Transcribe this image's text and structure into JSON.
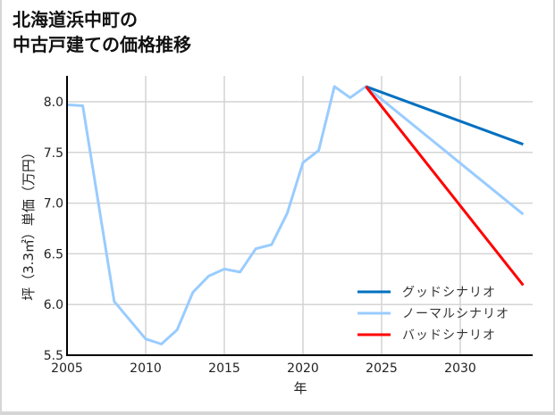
{
  "title_line1": "北海道浜中町の",
  "title_line2": "中古戸建ての価格推移",
  "chart_data": {
    "type": "line",
    "title": "北海道浜中町の中古戸建ての価格推移",
    "xlabel": "年",
    "ylabel": "坪（3.3㎡）単価（万円）",
    "xlim": [
      2005,
      2034
    ],
    "ylim": [
      5.5,
      8.25
    ],
    "xticks": [
      2005,
      2010,
      2015,
      2020,
      2025,
      2030
    ],
    "yticks": [
      5.5,
      6.0,
      6.5,
      7.0,
      7.5,
      8.0
    ],
    "ytick_labels": [
      "5.5",
      "6.0",
      "6.5",
      "7.0",
      "7.5",
      "8.0"
    ],
    "grid": true,
    "legend_position": "lower right",
    "series": [
      {
        "name": "ノーマルシナリオ",
        "color": "#99ccff",
        "x": [
          2005,
          2006,
          2008,
          2010,
          2011,
          2012,
          2013,
          2014,
          2015,
          2016,
          2017,
          2018,
          2019,
          2020,
          2021,
          2022,
          2023,
          2024,
          2034
        ],
        "values": [
          7.97,
          7.96,
          6.03,
          5.66,
          5.61,
          5.75,
          6.12,
          6.28,
          6.35,
          6.32,
          6.55,
          6.59,
          6.9,
          7.4,
          7.52,
          8.15,
          8.04,
          8.15,
          6.89
        ]
      },
      {
        "name": "グッドシナリオ",
        "color": "#0070c0",
        "x": [
          2024,
          2034
        ],
        "values": [
          8.15,
          7.58
        ]
      },
      {
        "name": "バッドシナリオ",
        "color": "#ff0000",
        "x": [
          2024,
          2034
        ],
        "values": [
          8.15,
          6.19
        ]
      }
    ]
  },
  "legend": [
    {
      "label": "グッドシナリオ",
      "color": "#0070c0"
    },
    {
      "label": "ノーマルシナリオ",
      "color": "#99ccff"
    },
    {
      "label": "バッドシナリオ",
      "color": "#ff0000"
    }
  ]
}
